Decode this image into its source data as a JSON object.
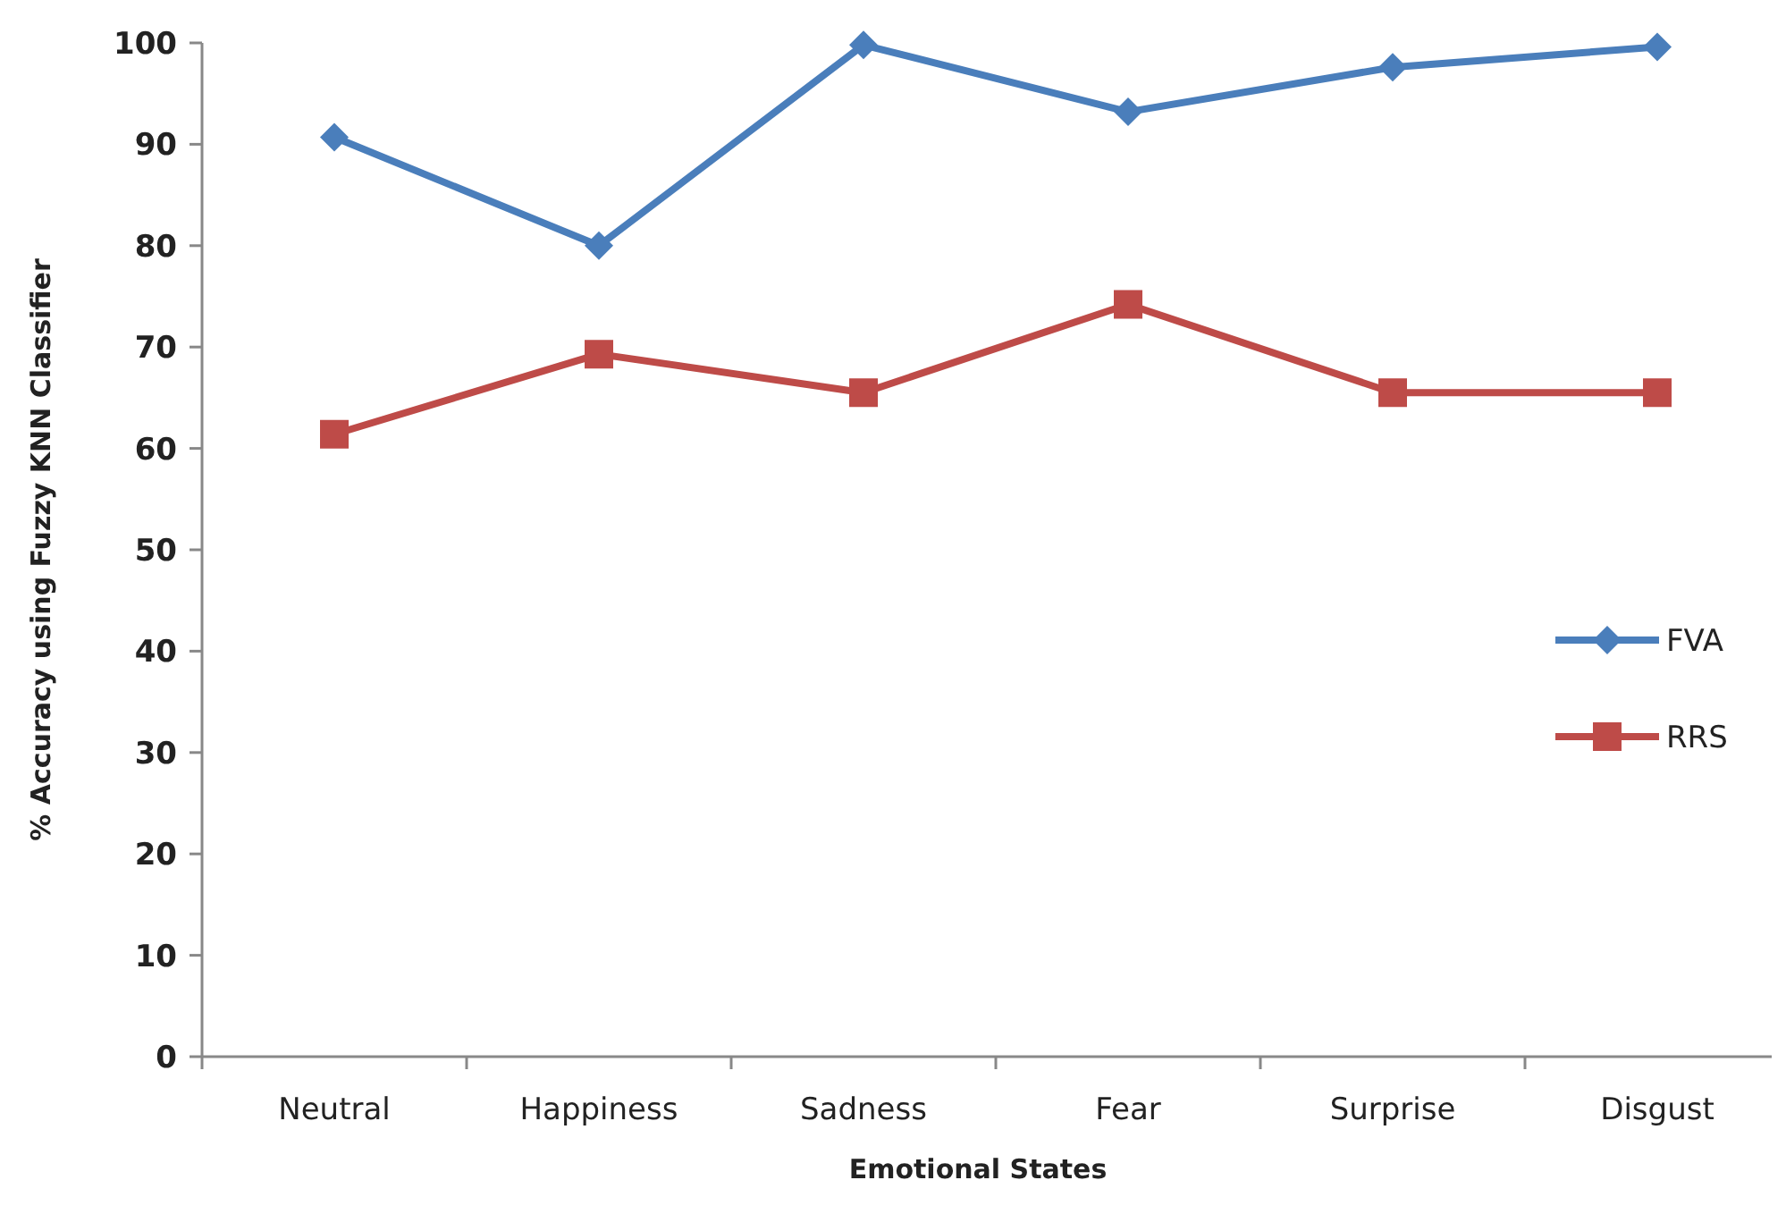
{
  "chart_data": {
    "type": "line",
    "xlabel": "Emotional States",
    "ylabel": "% Accuracy using Fuzzy KNN Classifier",
    "categories": [
      "Neutral",
      "Happiness",
      "Sadness",
      "Fear",
      "Surprise",
      "Disgust"
    ],
    "series": [
      {
        "name": "FVA",
        "color": "#4a7ebb",
        "marker": "diamond",
        "values": [
          90.7,
          80,
          99.8,
          93.2,
          97.6,
          99.6
        ]
      },
      {
        "name": "RRS",
        "color": "#be4b48",
        "marker": "square",
        "values": [
          61.4,
          69.3,
          65.5,
          74.2,
          65.5,
          65.5
        ]
      }
    ],
    "ylim": [
      0,
      100
    ],
    "yticks": [
      0,
      10,
      20,
      30,
      40,
      50,
      60,
      70,
      80,
      90,
      100
    ],
    "grid": false,
    "legend": "right",
    "line_style": "solid"
  }
}
